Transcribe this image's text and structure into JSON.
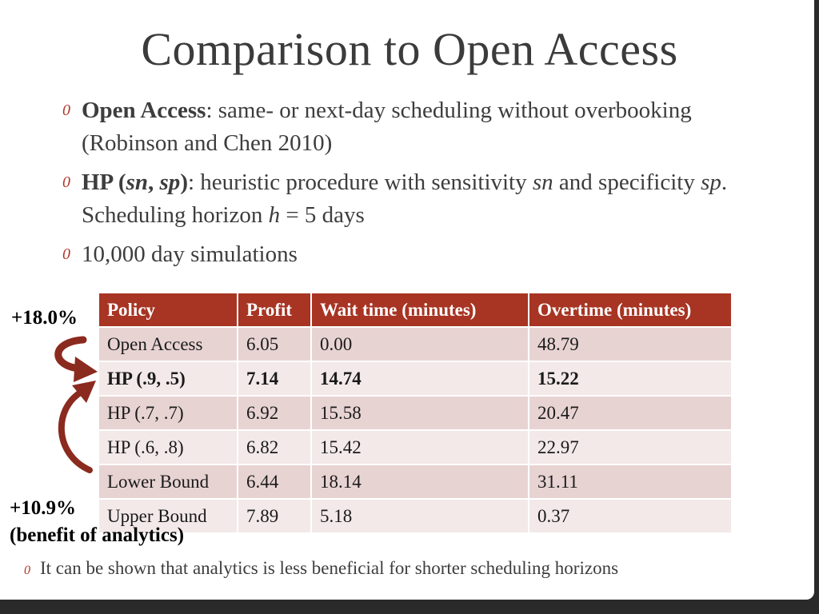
{
  "title": "Comparison to Open Access",
  "bullet_glyph": "0",
  "bullets": {
    "b1": {
      "term": "Open Access",
      "text": ": same- or next-day scheduling without overbooking (Robinson and Chen 2010)"
    },
    "b2": {
      "term_pre": "HP (",
      "term_sn": "sn",
      "term_comma": ", ",
      "term_sp": "sp",
      "term_post": ")",
      "text1": ": heuristic procedure with sensitivity ",
      "sn": "sn",
      "text2": " and specificity ",
      "sp": "sp",
      "text3": ". Scheduling horizon ",
      "h": "h",
      "text4": " = 5 days"
    },
    "b3": {
      "text": "10,000 day simulations"
    }
  },
  "table": {
    "headers": [
      "Policy",
      "Profit",
      "Wait time (minutes)",
      "Overtime (minutes)"
    ],
    "rows": [
      [
        "Open Access",
        "6.05",
        "0.00",
        "48.79"
      ],
      [
        "HP (.9, .5)",
        "7.14",
        "14.74",
        "15.22"
      ],
      [
        "HP (.7, .7)",
        "6.92",
        "15.58",
        "20.47"
      ],
      [
        "HP (.6, .8)",
        "6.82",
        "15.42",
        "22.97"
      ],
      [
        "Lower Bound",
        "6.44",
        "18.14",
        "31.11"
      ],
      [
        "Upper Bound",
        "7.89",
        "5.18",
        "0.37"
      ]
    ],
    "highlighted_row": "HP (.9, .5)"
  },
  "annotations": {
    "top": "+18.0%",
    "bottom": "+10.9%",
    "bottom_note": "(benefit of analytics)"
  },
  "footnote": "It can be shown that analytics is less beneficial for shorter scheduling horizons",
  "colors": {
    "accent": "#a83423",
    "arrow": "#8b2a1e"
  }
}
